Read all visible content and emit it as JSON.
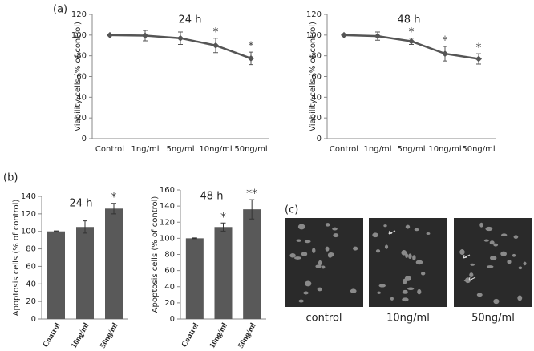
{
  "figure": {
    "labels": [
      "(a)",
      "(b)",
      "(c)"
    ],
    "images": [
      "control",
      "10ng/ml",
      "50ng/ml"
    ]
  },
  "chart_data": [
    {
      "type": "line",
      "title": "24 h",
      "y_label": "Viability cells (% of control)",
      "categories": [
        "Control",
        "1ng/ml",
        "5ng/ml",
        "10ng/ml",
        "50ng/ml"
      ],
      "values": [
        100,
        99.5,
        97,
        90,
        77.5
      ],
      "errors": [
        0,
        5,
        6,
        7,
        6
      ],
      "annotations": [
        null,
        null,
        null,
        "*",
        "*"
      ],
      "color": "#555555",
      "ylim": [
        0,
        120
      ],
      "yticks": [
        0,
        20,
        40,
        60,
        80,
        100,
        120
      ]
    },
    {
      "type": "line",
      "title": "48 h",
      "y_label": "Viability cells (% of control)",
      "categories": [
        "Control",
        "1ng/ml",
        "5ng/ml",
        "10ng/ml",
        "50ng/ml"
      ],
      "values": [
        100,
        99,
        94,
        82,
        77
      ],
      "errors": [
        0,
        4,
        3,
        7,
        5
      ],
      "annotations": [
        null,
        null,
        "*",
        "*",
        "*"
      ],
      "color": "#555555",
      "ylim": [
        0,
        120
      ],
      "yticks": [
        0,
        20,
        40,
        60,
        80,
        100,
        120
      ]
    },
    {
      "type": "bar",
      "title": "24 h",
      "y_label": "Apoptosis cells (% of control)",
      "categories": [
        "Control",
        "10ng/ml",
        "50ng/ml"
      ],
      "values": [
        100,
        105,
        126
      ],
      "errors": [
        0.5,
        7,
        6
      ],
      "annotations": [
        null,
        null,
        "*"
      ],
      "color": "#595959",
      "ylim": [
        0,
        140
      ],
      "yticks": [
        0,
        20,
        40,
        60,
        80,
        100,
        120,
        140
      ]
    },
    {
      "type": "bar",
      "title": "48 h",
      "y_label": "Apoptosis cells (% of control)",
      "categories": [
        "Control",
        "10ng/ml",
        "50ng/ml"
      ],
      "values": [
        100,
        114,
        136
      ],
      "errors": [
        0.5,
        5,
        12
      ],
      "annotations": [
        null,
        "*",
        "**"
      ],
      "color": "#595959",
      "ylim": [
        0,
        160
      ],
      "yticks": [
        0,
        20,
        40,
        60,
        80,
        100,
        120,
        140,
        160
      ]
    }
  ]
}
